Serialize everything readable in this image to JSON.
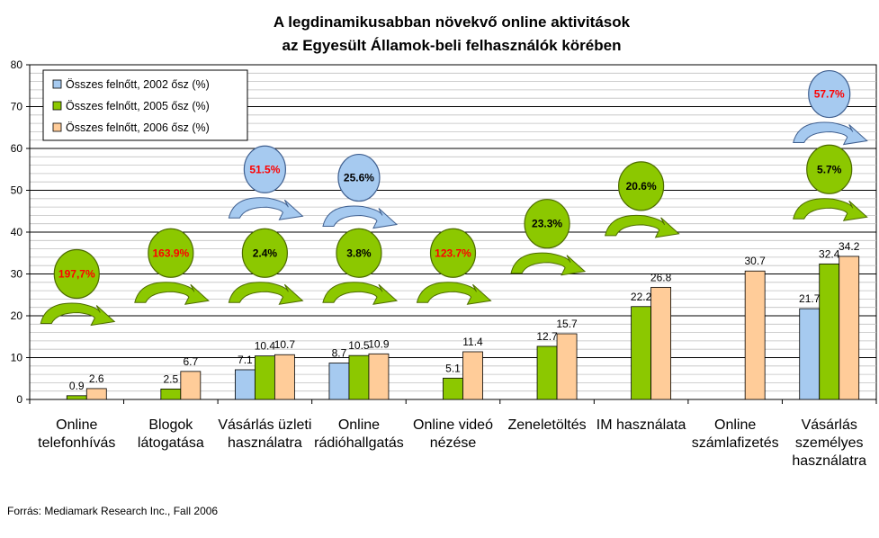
{
  "colors": {
    "series_2002": "#a6caf0",
    "series_2005": "#8cc800",
    "series_2006": "#ffcc99",
    "bubble_blue": "#a6caf0",
    "bubble_green": "#8cc800",
    "growth_red": "#ff0000",
    "growth_black": "#000000"
  },
  "chart_data": {
    "type": "bar",
    "title": "A legdinamikusabban növekvő online aktivitások",
    "subtitle": "az Egyesült Államok-beli felhasználók körében",
    "ylim": [
      0,
      80
    ],
    "yticks": [
      "0",
      "10",
      "20",
      "30",
      "40",
      "50",
      "60",
      "70",
      "80"
    ],
    "categories": [
      [
        "Online",
        "telefonhívás"
      ],
      [
        "Blogok",
        "látogatása"
      ],
      [
        "Vásárlás üzleti",
        "használatra"
      ],
      [
        "Online",
        "rádióhallgatás"
      ],
      [
        "Online videó",
        "nézése"
      ],
      [
        "Zeneletöltés"
      ],
      [
        "IM használata"
      ],
      [
        "Online",
        "számlafizetés"
      ],
      [
        "Vásárlás",
        "személyes",
        "használatra"
      ]
    ],
    "series": [
      {
        "name": "Összes felnőtt, 2002 ősz (%)",
        "values": [
          null,
          null,
          7.1,
          8.7,
          null,
          null,
          null,
          null,
          21.7
        ],
        "labels": [
          "",
          "",
          "7.1",
          "8.7",
          "",
          "",
          "",
          "",
          "21.7"
        ]
      },
      {
        "name": "Összes felnőtt, 2005 ősz (%)",
        "values": [
          0.9,
          2.5,
          10.4,
          10.5,
          5.1,
          12.7,
          22.2,
          null,
          32.4
        ],
        "labels": [
          "0.9",
          "2.5",
          "10.4",
          "10.5",
          "5.1",
          "12.7",
          "22.2",
          "",
          "32.4"
        ]
      },
      {
        "name": "Összes felnőtt, 2006 ősz (%)",
        "values": [
          2.6,
          6.7,
          10.7,
          10.9,
          11.4,
          15.7,
          26.8,
          30.7,
          34.2
        ],
        "labels": [
          "2.6",
          "6.7",
          "10.7",
          "10.9",
          "11.4",
          "15.7",
          "26.8",
          "30.7",
          "34.2"
        ]
      }
    ],
    "annotations": [
      {
        "category": 0,
        "text": "197,7%",
        "kind": "green",
        "red": true,
        "level": 30
      },
      {
        "category": 1,
        "text": "163.9%",
        "kind": "green",
        "red": true,
        "level": 35
      },
      {
        "category": 2,
        "text": "51.5%",
        "kind": "blue",
        "red": true,
        "level": 55
      },
      {
        "category": 2,
        "text": "2.4%",
        "kind": "green",
        "red": false,
        "level": 35
      },
      {
        "category": 3,
        "text": "25.6%",
        "kind": "blue",
        "red": false,
        "level": 53
      },
      {
        "category": 3,
        "text": "3.8%",
        "kind": "green",
        "red": false,
        "level": 35
      },
      {
        "category": 4,
        "text": "123.7%",
        "kind": "green",
        "red": true,
        "level": 35
      },
      {
        "category": 5,
        "text": "23.3%",
        "kind": "green",
        "red": false,
        "level": 42
      },
      {
        "category": 6,
        "text": "20.6%",
        "kind": "green",
        "red": false,
        "level": 51
      },
      {
        "category": 8,
        "text": "57.7%",
        "kind": "blue",
        "red": true,
        "level": 73
      },
      {
        "category": 8,
        "text": "5.7%",
        "kind": "green",
        "red": false,
        "level": 55
      }
    ],
    "legend_position": "top-left",
    "grid": true
  },
  "source": "Forrás: Mediamark Research Inc., Fall 2006"
}
